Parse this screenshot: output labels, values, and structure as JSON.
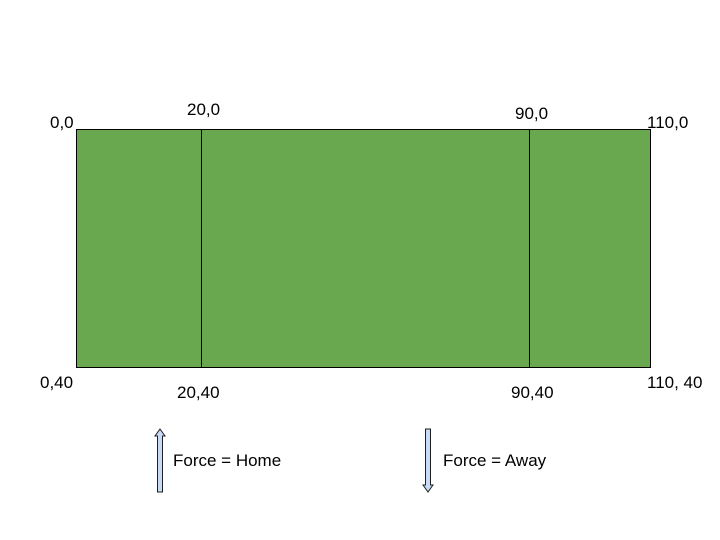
{
  "colors": {
    "field_fill": "#6aa84f",
    "line": "#000000",
    "arrow_fill": "#c9daf8",
    "arrow_stroke": "#1f1f1f"
  },
  "field": {
    "x_range": [
      0,
      110
    ],
    "y_range": [
      0,
      40
    ],
    "zone_lines_x": [
      20,
      90
    ]
  },
  "corners": {
    "top_left": "0,0",
    "top_zone_left": "20,0",
    "top_zone_right": "90,0",
    "top_right": "110,0",
    "bottom_left": "0,40",
    "bottom_zone_left": "20,40",
    "bottom_zone_right": "90,40",
    "bottom_right": "110, 40"
  },
  "legend": {
    "home": {
      "direction": "up",
      "icon": "arrow-up-icon",
      "label": "Force = Home"
    },
    "away": {
      "direction": "down",
      "icon": "arrow-down-icon",
      "label": "Force = Away"
    }
  }
}
